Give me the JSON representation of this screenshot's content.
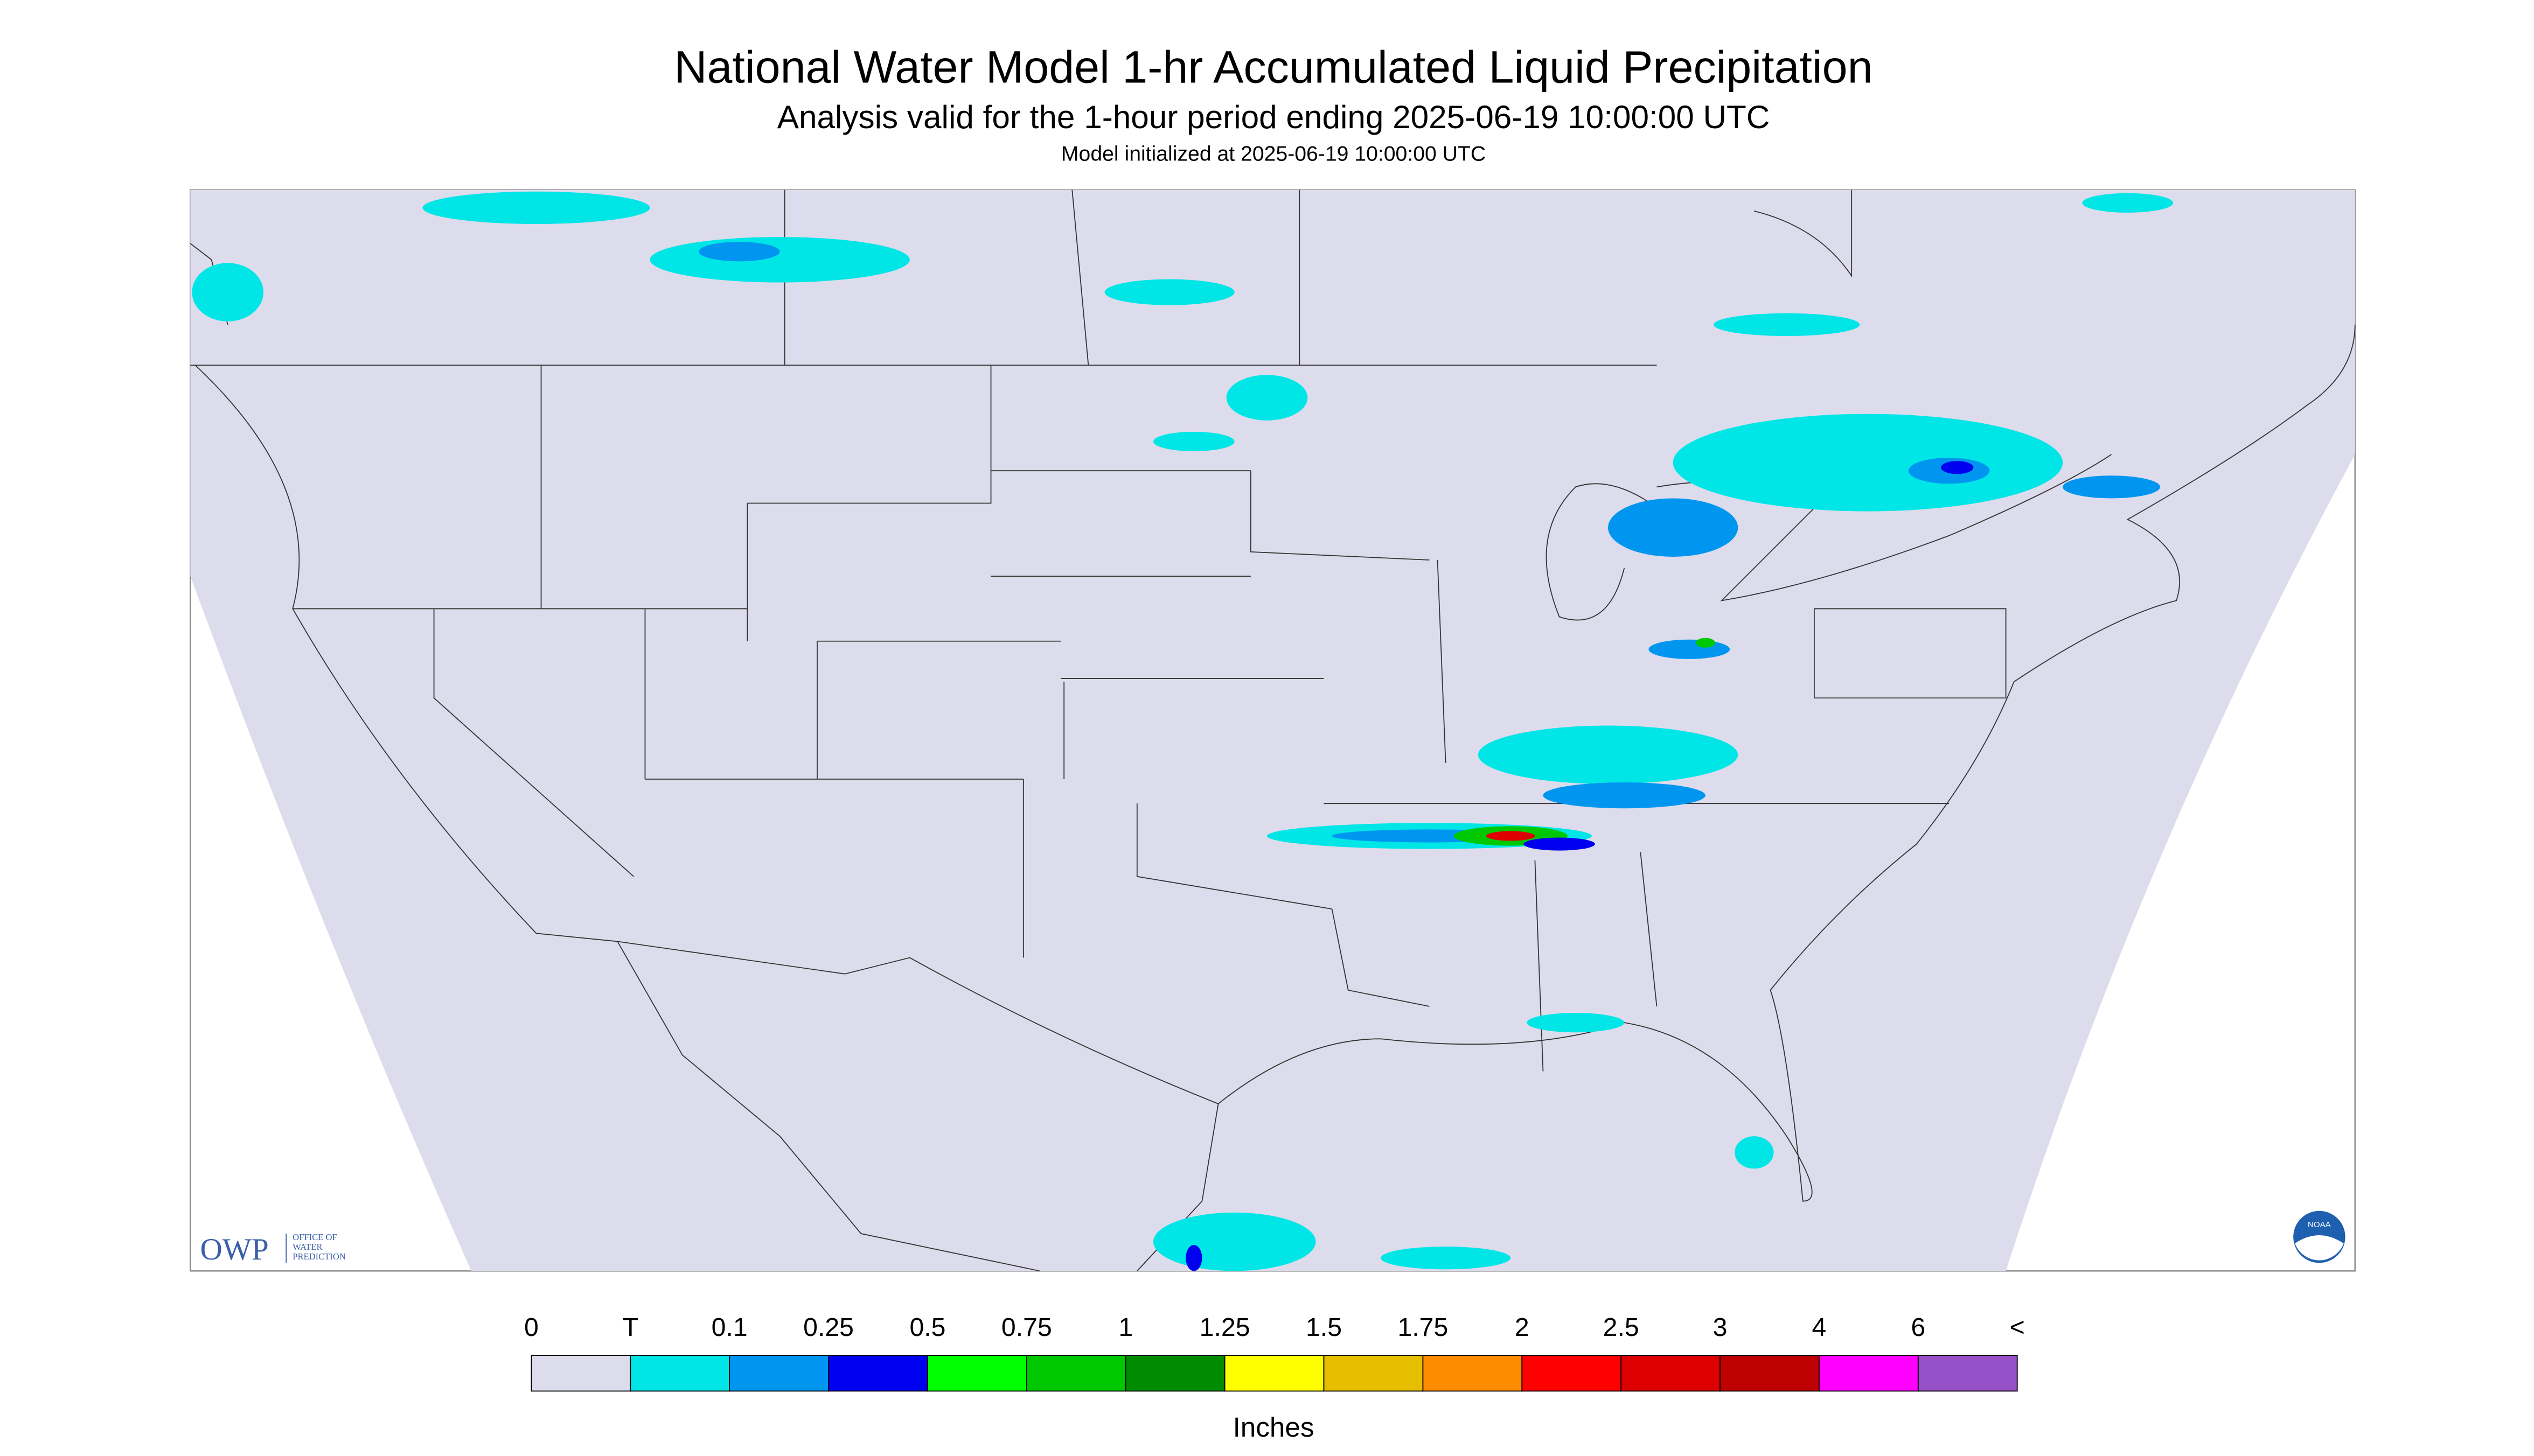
{
  "header": {
    "title": "National Water Model 1-hr Accumulated Liquid Precipitation",
    "subtitle": "Analysis valid for the 1-hour period ending 2025-06-19 10:00:00 UTC",
    "init": "Model initialized at 2025-06-19 10:00:00 UTC"
  },
  "colorbar": {
    "labels": [
      "0",
      "T",
      "0.1",
      "0.25",
      "0.5",
      "0.75",
      "1",
      "1.25",
      "1.5",
      "1.75",
      "2",
      "2.5",
      "3",
      "4",
      "6",
      "<"
    ],
    "colors": [
      "#dcdcec",
      "#00e6e6",
      "#0096f0",
      "#0000f0",
      "#00ff00",
      "#00c800",
      "#008c00",
      "#ffff00",
      "#e6be00",
      "#ff8c00",
      "#ff0000",
      "#dc0000",
      "#be0000",
      "#ff00ff",
      "#9650c8"
    ],
    "unit": "Inches"
  },
  "logos": {
    "owp": "OWP",
    "owp_name": [
      "OFFICE OF",
      "WATER",
      "PREDICTION"
    ],
    "noaa": "NOAA"
  }
}
